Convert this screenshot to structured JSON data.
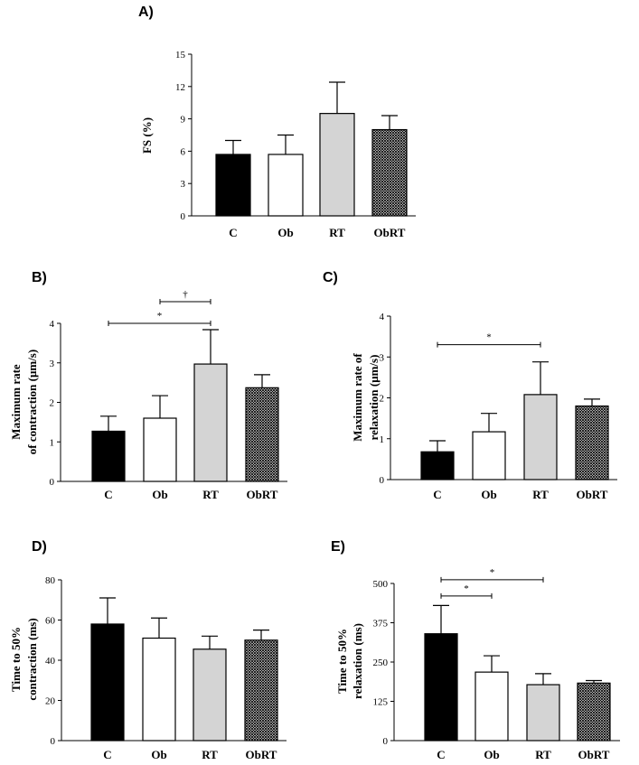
{
  "figure": {
    "categories": [
      "C",
      "Ob",
      "RT",
      "ObRT"
    ],
    "series_colors": {
      "C": "#000000",
      "Ob": "#ffffff",
      "RT": "#d4d4d4",
      "ObRT": "crosshatch"
    }
  },
  "chart_data": [
    {
      "panel": "A)",
      "type": "bar",
      "categories": [
        "C",
        "Ob",
        "RT",
        "ObRT"
      ],
      "values": [
        5.7,
        5.7,
        9.5,
        8.0
      ],
      "errors": [
        1.3,
        1.8,
        2.9,
        1.3
      ],
      "ylabel_lines": [
        "FS (%)"
      ],
      "ylim": [
        0,
        15
      ],
      "yticks": [
        0,
        3,
        6,
        9,
        12,
        15
      ],
      "ytick_labels": [
        "0",
        "3",
        "6",
        "9",
        "12",
        "15"
      ],
      "significance": []
    },
    {
      "panel": "B)",
      "type": "bar",
      "categories": [
        "C",
        "Ob",
        "RT",
        "ObRT"
      ],
      "values": [
        1.27,
        1.6,
        2.97,
        2.37
      ],
      "errors": [
        0.38,
        0.57,
        0.87,
        0.33
      ],
      "ylabel_lines": [
        "Maximum rate",
        "of contraction (μm/s)"
      ],
      "ylim": [
        0,
        4
      ],
      "yticks": [
        0,
        1,
        2,
        3,
        4
      ],
      "ytick_labels": [
        "0",
        "1",
        "2",
        "3",
        "4"
      ],
      "significance": [
        {
          "from": 0,
          "to": 2,
          "label": "*",
          "level": 4.0
        },
        {
          "from": 1,
          "to": 2,
          "label": "†",
          "level": 4.55
        }
      ]
    },
    {
      "panel": "C)",
      "type": "bar",
      "categories": [
        "C",
        "Ob",
        "RT",
        "ObRT"
      ],
      "values": [
        0.68,
        1.17,
        2.08,
        1.8
      ],
      "errors": [
        0.27,
        0.45,
        0.8,
        0.17
      ],
      "ylabel_lines": [
        "Maximum rate of",
        "relaxation (μm/s)"
      ],
      "ylim": [
        0,
        4
      ],
      "yticks": [
        0,
        1,
        2,
        3,
        4
      ],
      "ytick_labels": [
        "0",
        "1",
        "2",
        "3",
        "4"
      ],
      "significance": [
        {
          "from": 0,
          "to": 2,
          "label": "*",
          "level": 3.3
        }
      ]
    },
    {
      "panel": "D)",
      "type": "bar",
      "categories": [
        "C",
        "Ob",
        "RT",
        "ObRT"
      ],
      "values": [
        58,
        51,
        45.5,
        50
      ],
      "errors": [
        13,
        10,
        6.5,
        5
      ],
      "ylabel_lines": [
        "Time to 50%",
        "contraction (ms)"
      ],
      "ylim": [
        0,
        80
      ],
      "yticks": [
        0,
        20,
        40,
        60,
        80
      ],
      "ytick_labels": [
        "0",
        "20",
        "40",
        "60",
        "80"
      ],
      "significance": []
    },
    {
      "panel": "E)",
      "type": "bar",
      "categories": [
        "C",
        "Ob",
        "RT",
        "ObRT"
      ],
      "values": [
        340,
        218,
        178,
        183
      ],
      "errors": [
        90,
        52,
        35,
        8
      ],
      "ylabel_lines": [
        "Time to 50%",
        "relaxation (ms)"
      ],
      "ylim": [
        0,
        500
      ],
      "yticks": [
        0,
        125,
        250,
        375,
        500
      ],
      "ytick_labels": [
        "0",
        "125",
        "250",
        "375",
        "500"
      ],
      "significance": [
        {
          "from": 0,
          "to": 1,
          "label": "*",
          "level": 460
        },
        {
          "from": 0,
          "to": 2,
          "label": "*",
          "level": 512
        }
      ]
    }
  ]
}
